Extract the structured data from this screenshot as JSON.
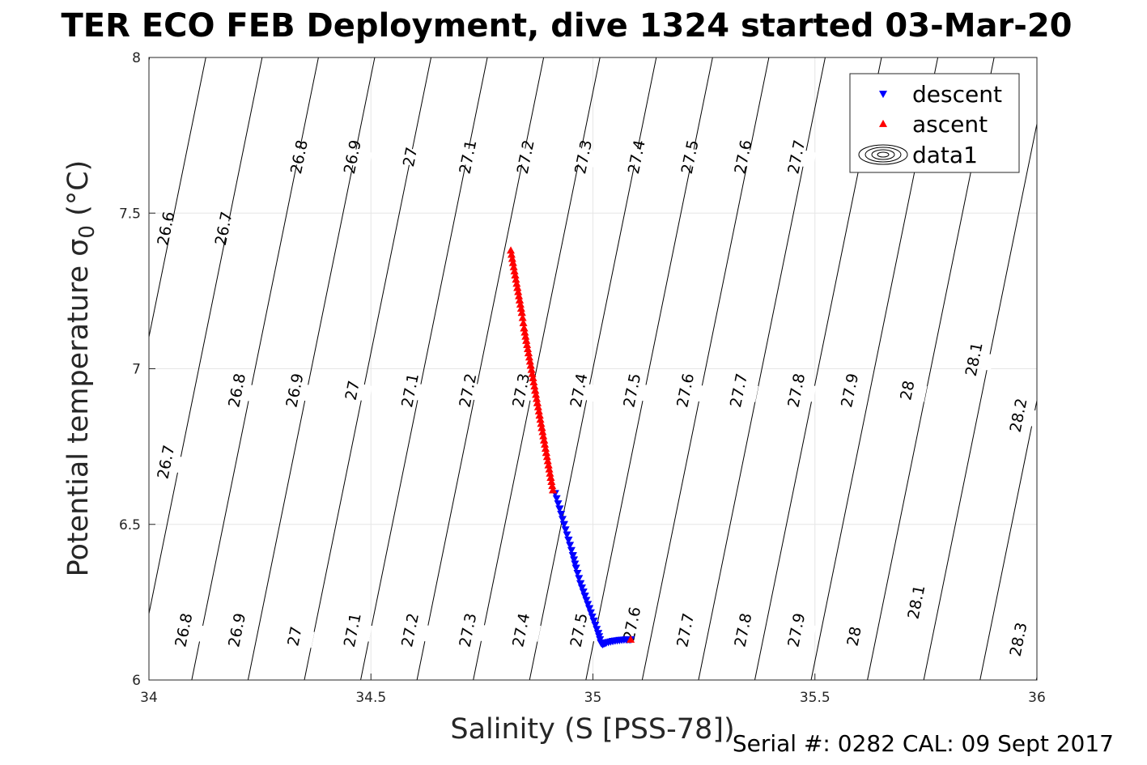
{
  "chart_data": {
    "type": "scatter",
    "title": "TER ECO FEB Deployment, dive 1324 started 03-Mar-20",
    "xlabel": "Salinity (S [PSS-78])",
    "ylabel": "Potential temperature σ",
    "ylabel_subscript": "0",
    "ylabel_unit": " (°C)",
    "xlim": [
      34,
      36
    ],
    "ylim": [
      6,
      8
    ],
    "xticks": [
      34,
      34.5,
      35,
      35.5,
      36
    ],
    "yticks": [
      6,
      6.5,
      7,
      7.5,
      8
    ],
    "grid": true,
    "legend_position": "top-right",
    "footer": "Serial #: 0282  CAL: 09 Sept 2017",
    "colors": {
      "descent": "#0000ff",
      "ascent": "#ff0000",
      "contour": "#000000",
      "grid": "#e6e6e6"
    },
    "series": [
      {
        "name": "descent",
        "marker": "triangle-down",
        "x": [
          34.915,
          34.925,
          34.935,
          34.945,
          34.955,
          34.962,
          34.972,
          34.982,
          34.992,
          35.002,
          35.012,
          35.018,
          35.022,
          35.03,
          35.045,
          35.06,
          35.075,
          35.085
        ],
        "y": [
          6.6,
          6.55,
          6.5,
          6.45,
          6.4,
          6.36,
          6.31,
          6.27,
          6.23,
          6.19,
          6.15,
          6.12,
          6.115,
          6.12,
          6.125,
          6.128,
          6.13,
          6.13
        ]
      },
      {
        "name": "ascent",
        "marker": "triangle-up",
        "x": [
          34.815,
          34.82,
          34.825,
          34.83,
          34.835,
          34.84,
          34.845,
          34.85,
          34.855,
          34.86,
          34.865,
          34.87,
          34.875,
          34.88,
          34.885,
          34.89,
          34.895,
          34.9,
          34.905,
          34.91,
          35.085
        ],
        "y": [
          7.38,
          7.34,
          7.3,
          7.26,
          7.22,
          7.18,
          7.13,
          7.09,
          7.05,
          7.01,
          6.97,
          6.93,
          6.89,
          6.85,
          6.81,
          6.77,
          6.73,
          6.69,
          6.65,
          6.61,
          6.13
        ]
      }
    ],
    "legend": [
      {
        "name": "descent",
        "marker": "triangle-down"
      },
      {
        "name": "ascent",
        "marker": "triangle-up"
      },
      {
        "name": "data1",
        "marker": "contour"
      }
    ],
    "contour_levels": [
      "26.6",
      "26.7",
      "26.8",
      "26.9",
      "27",
      "27.1",
      "27.2",
      "27.3",
      "27.4",
      "27.5",
      "27.6",
      "27.7",
      "27.8",
      "27.9",
      "28",
      "28.1",
      "28.2",
      "28.3"
    ],
    "contour_labels": [
      {
        "text": "26.6",
        "s": 34.04,
        "t": 7.45
      },
      {
        "text": "26.7",
        "s": 34.17,
        "t": 7.45
      },
      {
        "text": "26.8",
        "s": 34.34,
        "t": 7.68
      },
      {
        "text": "26.9",
        "s": 34.46,
        "t": 7.68
      },
      {
        "text": "27",
        "s": 34.59,
        "t": 7.68
      },
      {
        "text": "27.1",
        "s": 34.72,
        "t": 7.68
      },
      {
        "text": "27.2",
        "s": 34.85,
        "t": 7.68
      },
      {
        "text": "27.3",
        "s": 34.98,
        "t": 7.68
      },
      {
        "text": "27.4",
        "s": 35.1,
        "t": 7.68
      },
      {
        "text": "27.5",
        "s": 35.22,
        "t": 7.68
      },
      {
        "text": "27.6",
        "s": 35.34,
        "t": 7.68
      },
      {
        "text": "27.7",
        "s": 35.46,
        "t": 7.68
      },
      {
        "text": "26.7",
        "s": 34.04,
        "t": 6.7
      },
      {
        "text": "26.8",
        "s": 34.2,
        "t": 6.93
      },
      {
        "text": "26.9",
        "s": 34.33,
        "t": 6.93
      },
      {
        "text": "27",
        "s": 34.46,
        "t": 6.93
      },
      {
        "text": "27.1",
        "s": 34.59,
        "t": 6.93
      },
      {
        "text": "27.2",
        "s": 34.72,
        "t": 6.93
      },
      {
        "text": "27.3",
        "s": 34.84,
        "t": 6.93
      },
      {
        "text": "27.4",
        "s": 34.97,
        "t": 6.93
      },
      {
        "text": "27.5",
        "s": 35.09,
        "t": 6.93
      },
      {
        "text": "27.6",
        "s": 35.21,
        "t": 6.93
      },
      {
        "text": "27.7",
        "s": 35.33,
        "t": 6.93
      },
      {
        "text": "27.8",
        "s": 35.46,
        "t": 6.93
      },
      {
        "text": "27.9",
        "s": 35.58,
        "t": 6.93
      },
      {
        "text": "28",
        "s": 35.71,
        "t": 6.93
      },
      {
        "text": "28.1",
        "s": 35.86,
        "t": 7.03
      },
      {
        "text": "28.2",
        "s": 35.96,
        "t": 6.85
      },
      {
        "text": "26.8",
        "s": 34.08,
        "t": 6.16
      },
      {
        "text": "26.9",
        "s": 34.2,
        "t": 6.16
      },
      {
        "text": "27",
        "s": 34.33,
        "t": 6.14
      },
      {
        "text": "27.1",
        "s": 34.46,
        "t": 6.16
      },
      {
        "text": "27.2",
        "s": 34.59,
        "t": 6.16
      },
      {
        "text": "27.3",
        "s": 34.72,
        "t": 6.16
      },
      {
        "text": "27.4",
        "s": 34.84,
        "t": 6.16
      },
      {
        "text": "27.5",
        "s": 34.97,
        "t": 6.16
      },
      {
        "text": "27.6",
        "s": 35.09,
        "t": 6.18
      },
      {
        "text": "27.7",
        "s": 35.21,
        "t": 6.16
      },
      {
        "text": "27.8",
        "s": 35.34,
        "t": 6.16
      },
      {
        "text": "27.9",
        "s": 35.46,
        "t": 6.16
      },
      {
        "text": "28",
        "s": 35.59,
        "t": 6.14
      },
      {
        "text": "28.1",
        "s": 35.73,
        "t": 6.25
      },
      {
        "text": "28.3",
        "s": 35.96,
        "t": 6.13
      }
    ]
  }
}
